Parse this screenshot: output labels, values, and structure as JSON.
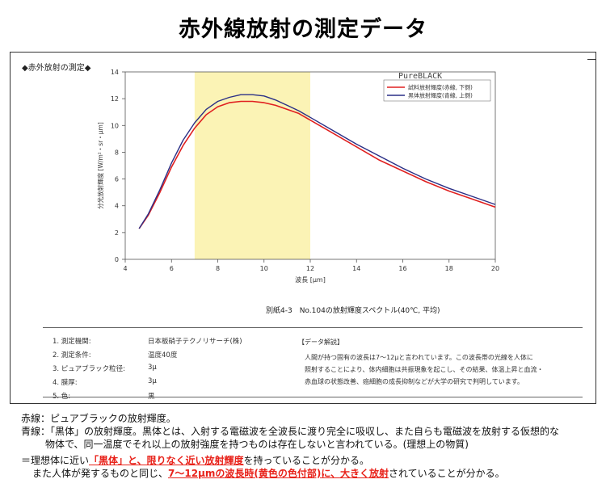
{
  "page_title": "赤外線放射の測定データ",
  "section_label": "◆赤外放射の測定◆",
  "caption": "別紙4-3　No.104の放射輝度スペクトル(40℃, 平均)",
  "chart_data": {
    "type": "line",
    "xlabel": "波長 [μm]",
    "ylabel": "分光放射輝度 [W/m²・sr・μm]",
    "xlim": [
      4,
      20
    ],
    "ylim": [
      0,
      14
    ],
    "xticks": [
      4,
      6,
      8,
      10,
      12,
      14,
      16,
      18,
      20
    ],
    "yticks": [
      0,
      2,
      4,
      6,
      8,
      10,
      12,
      14
    ],
    "highlight_band": {
      "from": 7,
      "to": 12,
      "color": "#fbf3b5"
    },
    "legend_watermark": "PureBLACK",
    "legend_position": "top-right",
    "series": [
      {
        "name": "試料放射輝度(赤線, 下側)",
        "color": "#e02020",
        "x": [
          4.6,
          5,
          5.5,
          6,
          6.5,
          7,
          7.5,
          8,
          8.5,
          9,
          9.5,
          10,
          10.5,
          11,
          11.5,
          12,
          13,
          14,
          15,
          16,
          17,
          18,
          19,
          20
        ],
        "y": [
          2.3,
          3.3,
          5.0,
          6.9,
          8.5,
          9.8,
          10.8,
          11.4,
          11.7,
          11.8,
          11.8,
          11.7,
          11.5,
          11.2,
          10.9,
          10.4,
          9.4,
          8.4,
          7.4,
          6.6,
          5.8,
          5.1,
          4.5,
          3.9
        ],
        "width": 1.6
      },
      {
        "name": "黒体放射輝度(青線, 上側)",
        "color": "#2a2f86",
        "x": [
          4.6,
          5,
          5.5,
          6,
          6.5,
          7,
          7.5,
          8,
          8.5,
          9,
          9.5,
          10,
          10.5,
          11,
          11.5,
          12,
          13,
          14,
          15,
          16,
          17,
          18,
          19,
          20
        ],
        "y": [
          2.3,
          3.4,
          5.2,
          7.2,
          8.9,
          10.2,
          11.2,
          11.8,
          12.1,
          12.3,
          12.3,
          12.2,
          11.9,
          11.5,
          11.1,
          10.6,
          9.6,
          8.6,
          7.7,
          6.8,
          6.0,
          5.3,
          4.7,
          4.1
        ],
        "width": 1.4
      }
    ]
  },
  "conditions": [
    {
      "label": "1. 測定機関:",
      "value": "日本板硝子テクノリサーチ(株)"
    },
    {
      "label": "2. 測定条件:",
      "value": "温度40度"
    },
    {
      "label": "3. ピュアブラック粒径:",
      "value": "3μ"
    },
    {
      "label": "4. 膜厚:",
      "value": "3μ"
    },
    {
      "label": "5. 色:",
      "value": "黒"
    }
  ],
  "notes": {
    "title": "【データ解説】",
    "lines": [
      "人間が持つ固有の波長は7〜12μと言われています。この波長帯の光線を人体に",
      "照射することにより、体内細胞は共振現象を起こし、その結果、体温上昇と血流・",
      "赤血球の状態改善、癌細胞の成長抑制などが大学の研究で判明しています。"
    ]
  },
  "footer": {
    "red_line": "赤線：ピュアブラックの放射輝度。",
    "blue_line_1": "青線：「黒体」の放射輝度。黒体とは、入射する電磁波を全波長に渡り完全に吸収し、また自らも電磁波を放射する仮想的な",
    "blue_line_2": "物体で、同一温度でそれ以上の放射強度を持つものは存在しないと言われている。(理想上の物質)",
    "c1_pre": "＝理想体に近い",
    "c1_hl": "「黒体」と、限りなく近い放射輝度",
    "c1_post": "を持っていることが分かる。",
    "c2_pre": "また人体が発するものと同じ、",
    "c2_hl": "7〜12μmの波長時(黄色の色付部)に、大きく放射",
    "c2_post": "されていることが分かる。"
  }
}
